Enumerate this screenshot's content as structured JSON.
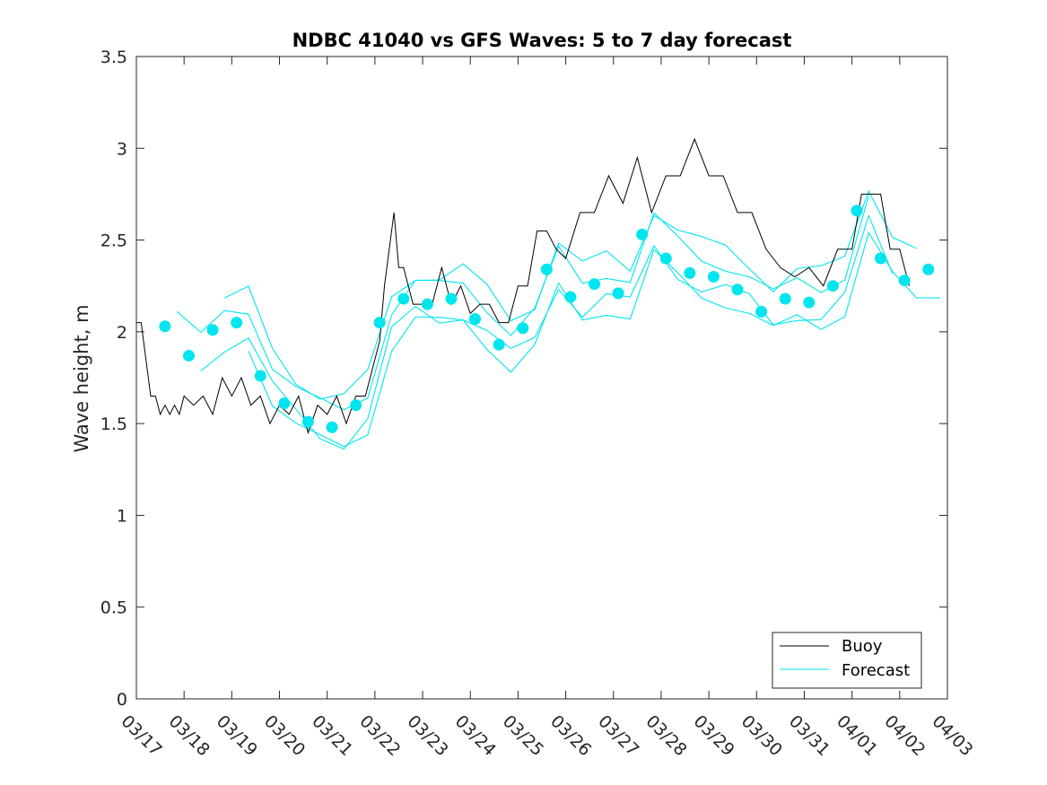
{
  "chart_data": {
    "type": "line",
    "title": "NDBC 41040 vs GFS Waves: 5 to 7 day forecast",
    "xlabel": "",
    "ylabel": "Wave height, m",
    "xlim": [
      0,
      17
    ],
    "ylim": [
      0,
      3.5
    ],
    "yticks": [
      0,
      0.5,
      1,
      1.5,
      2,
      2.5,
      3,
      3.5
    ],
    "ytick_labels": [
      "0",
      "0.5",
      "1",
      "1.5",
      "2",
      "2.5",
      "3",
      "3.5"
    ],
    "xticks": [
      0,
      1,
      2,
      3,
      4,
      5,
      6,
      7,
      8,
      9,
      10,
      11,
      12,
      13,
      14,
      15,
      16,
      17
    ],
    "xtick_labels": [
      "03/17",
      "03/18",
      "03/19",
      "03/20",
      "03/21",
      "03/22",
      "03/23",
      "03/24",
      "03/25",
      "03/26",
      "03/27",
      "03/28",
      "03/29",
      "03/30",
      "03/31",
      "04/01",
      "04/02",
      "04/03"
    ],
    "grid": false,
    "legend": {
      "position": "bottom-right",
      "entries": [
        "Buoy",
        "Forecast"
      ]
    },
    "colors": {
      "buoy": "#000000",
      "forecast": "#00e5ee",
      "axes": "#262626"
    },
    "series": [
      {
        "name": "Buoy",
        "x": [
          0,
          0.1,
          0.2,
          0.3,
          0.4,
          0.5,
          0.6,
          0.7,
          0.8,
          0.9,
          1.0,
          1.2,
          1.4,
          1.6,
          1.8,
          2.0,
          2.2,
          2.4,
          2.6,
          2.8,
          3.0,
          3.2,
          3.4,
          3.6,
          3.8,
          4.0,
          4.2,
          4.4,
          4.6,
          4.8,
          5.0,
          5.1,
          5.2,
          5.3,
          5.4,
          5.5,
          5.6,
          5.8,
          6.0,
          6.2,
          6.4,
          6.6,
          6.8,
          7.0,
          7.2,
          7.4,
          7.6,
          7.8,
          8.0,
          8.2,
          8.4,
          8.6,
          8.8,
          9.0,
          9.3,
          9.6,
          9.9,
          10.2,
          10.5,
          10.8,
          11.1,
          11.4,
          11.7,
          12.0,
          12.3,
          12.6,
          12.9,
          13.2,
          13.5,
          13.8,
          14.1,
          14.4,
          14.7,
          15.0,
          15.2,
          15.4,
          15.6,
          15.8,
          16.0,
          16.2
        ],
        "y": [
          2.0,
          2.1,
          1.8,
          1.7,
          1.6,
          1.6,
          1.55,
          1.6,
          1.55,
          1.6,
          1.6,
          1.65,
          1.6,
          1.6,
          1.7,
          1.7,
          1.7,
          1.65,
          1.6,
          1.55,
          1.55,
          1.6,
          1.6,
          1.5,
          1.55,
          1.6,
          1.6,
          1.55,
          1.6,
          1.7,
          1.8,
          2.0,
          2.2,
          2.5,
          2.6,
          2.4,
          2.3,
          2.2,
          2.1,
          2.2,
          2.3,
          2.2,
          2.2,
          2.15,
          2.1,
          2.2,
          2.0,
          2.1,
          2.2,
          2.3,
          2.5,
          2.6,
          2.4,
          2.45,
          2.6,
          2.7,
          2.8,
          2.75,
          2.9,
          2.7,
          2.8,
          2.9,
          3.0,
          2.9,
          2.8,
          2.7,
          2.6,
          2.5,
          2.3,
          2.35,
          2.3,
          2.3,
          2.4,
          2.5,
          2.7,
          2.8,
          2.7,
          2.5,
          2.4,
          2.3
        ]
      },
      {
        "name": "Forecast",
        "x": [
          0.6,
          1.1,
          1.6,
          2.1,
          2.6,
          3.1,
          3.6,
          4.1,
          4.6,
          5.1,
          5.6,
          6.1,
          6.6,
          7.1,
          7.6,
          8.1,
          8.6,
          9.1,
          9.6,
          10.1,
          10.6,
          11.1,
          11.6,
          12.1,
          12.6,
          13.1,
          13.6,
          14.1,
          14.6,
          15.1,
          15.6,
          16.1,
          16.6
        ],
        "y": [
          2.03,
          1.87,
          2.01,
          2.05,
          1.76,
          1.61,
          1.51,
          1.48,
          1.6,
          2.05,
          2.18,
          2.15,
          2.18,
          2.07,
          1.93,
          2.02,
          2.34,
          2.19,
          2.26,
          2.21,
          2.53,
          2.4,
          2.32,
          2.3,
          2.23,
          2.11,
          2.18,
          2.16,
          2.25,
          2.66,
          2.4,
          2.28,
          2.34
        ]
      }
    ]
  }
}
